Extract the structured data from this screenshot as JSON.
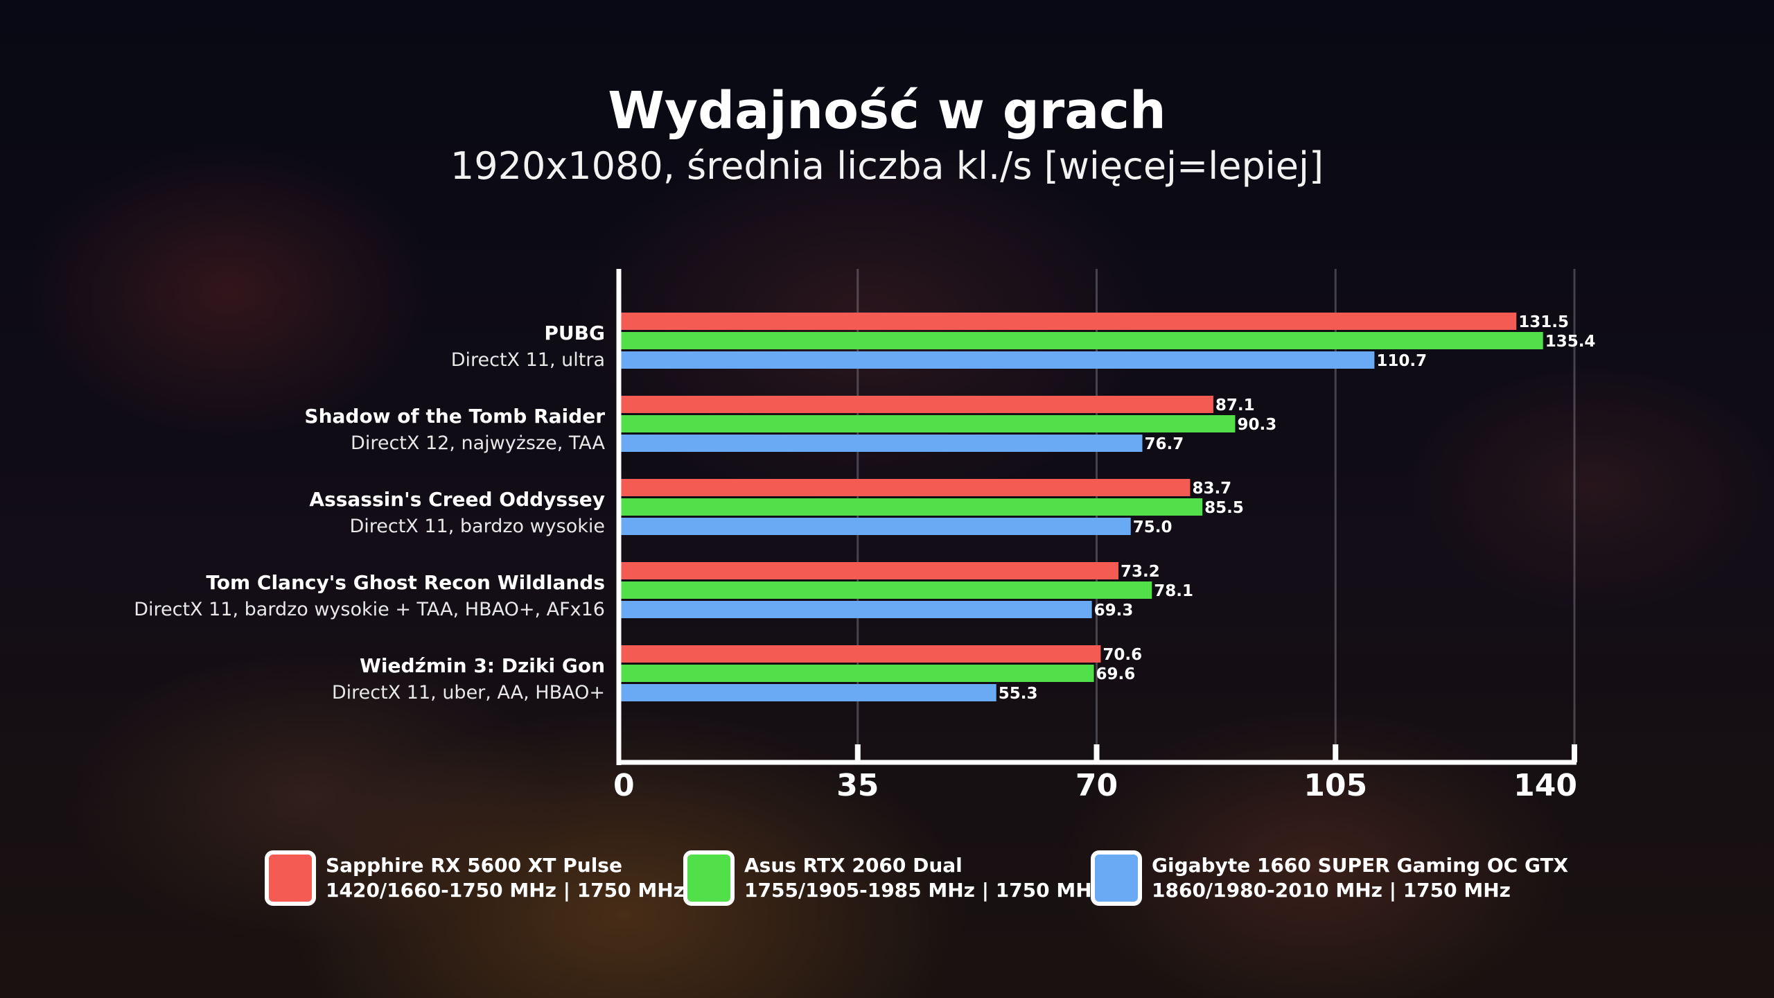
{
  "title": "Wydajność w grach",
  "subtitle": "1920x1080, średnia liczba kl./s [więcej=lepiej]",
  "chart_data": {
    "type": "bar",
    "orientation": "horizontal",
    "categories": [
      {
        "name": "PUBG",
        "detail": "DirectX 11, ultra"
      },
      {
        "name": "Shadow of the Tomb Raider",
        "detail": "DirectX 12, najwyższe, TAA"
      },
      {
        "name": "Assassin's Creed Oddyssey",
        "detail": "DirectX 11, bardzo wysokie"
      },
      {
        "name": "Tom Clancy's Ghost Recon Wildlands",
        "detail": "DirectX 11, bardzo wysokie + TAA, HBAO+, AFx16"
      },
      {
        "name": "Wiedźmin 3: Dziki Gon",
        "detail": "DirectX 11, uber, AA, HBAO+"
      }
    ],
    "series": [
      {
        "name": "Sapphire RX 5600 XT Pulse",
        "detail": "1420/1660-1750 MHz | 1750 MHz",
        "color": "#f45b52",
        "values": [
          131.5,
          87.1,
          83.7,
          73.2,
          70.6
        ]
      },
      {
        "name": "Asus RTX 2060 Dual",
        "detail": "1755/1905-1985 MHz | 1750 MHz",
        "color": "#52e04a",
        "values": [
          135.4,
          90.3,
          85.5,
          78.1,
          69.6
        ]
      },
      {
        "name": "Gigabyte 1660 SUPER Gaming OC GTX",
        "detail": "1860/1980-2010 MHz | 1750 MHz",
        "color": "#6aaaf5",
        "values": [
          110.7,
          76.7,
          75.0,
          69.3,
          55.3
        ]
      }
    ],
    "value_labels": [
      [
        "131.5",
        "87.1",
        "83.7",
        "73.2",
        "70.6"
      ],
      [
        "135.4",
        "90.3",
        "85.5",
        "78.1",
        "69.6"
      ],
      [
        "110.7",
        "76.7",
        "75.0",
        "69.3",
        "55.3"
      ]
    ],
    "xlim": [
      0,
      140
    ],
    "xticks": [
      "0",
      "35",
      "70",
      "105",
      "140"
    ],
    "grid": true,
    "legend_position": "bottom"
  }
}
